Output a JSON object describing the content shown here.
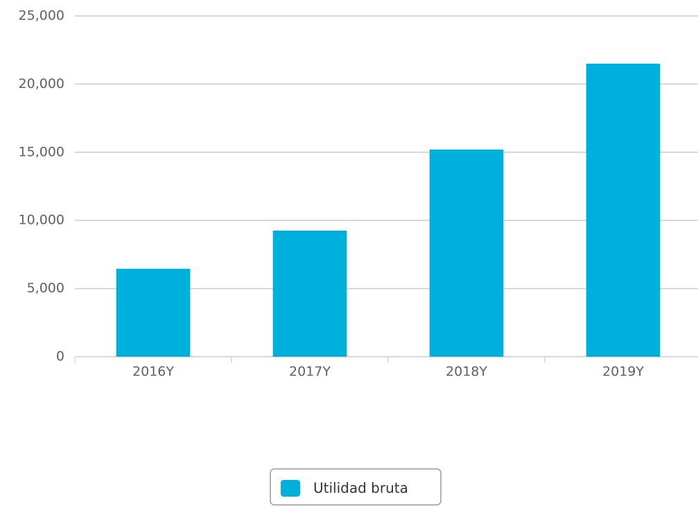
{
  "chart_data": {
    "type": "bar",
    "categories": [
      "2016Y",
      "2017Y",
      "2018Y",
      "2019Y"
    ],
    "series": [
      {
        "name": "Utilidad bruta",
        "color": "#00b0dc",
        "values": [
          6450,
          9250,
          15200,
          21500
        ]
      }
    ],
    "ylim": [
      0,
      25000
    ],
    "yticks": [
      0,
      {
        "value": 5000,
        "label": "5,000"
      },
      {
        "value": 10000,
        "label": "10,000"
      },
      {
        "value": 15000,
        "label": "15,000"
      },
      {
        "value": 20000,
        "label": "20,000"
      },
      {
        "value": 25000,
        "label": "25,000"
      }
    ],
    "grid": true,
    "legend": "bottom"
  }
}
